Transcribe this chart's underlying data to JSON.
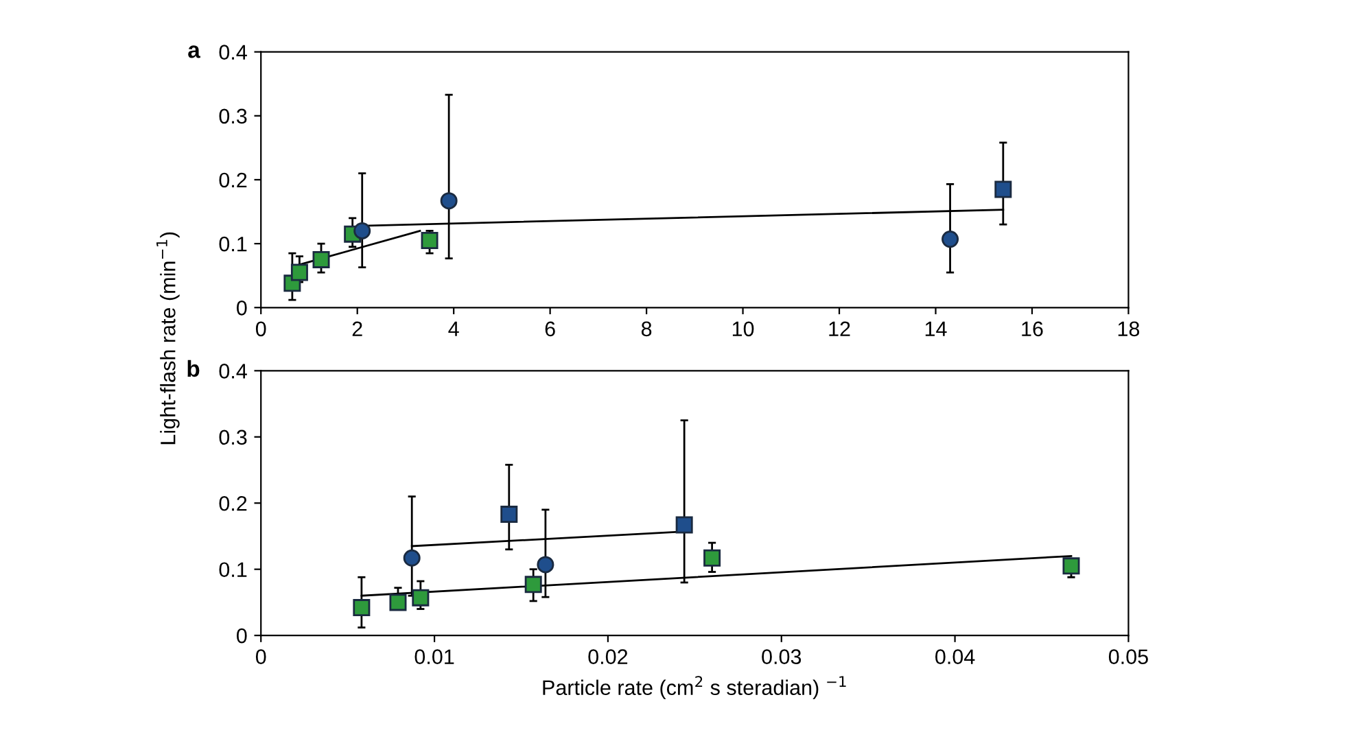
{
  "chart_data": [
    {
      "type": "scatter",
      "ylabel": "Light-flash rate (min$^{−1}$)",
      "annotations": [
        "a"
      ],
      "xlim": [
        0,
        18
      ],
      "xticks": [
        0,
        2,
        4,
        6,
        8,
        10,
        12,
        14,
        16,
        18
      ],
      "ylim": [
        0,
        0.4
      ],
      "yticks": [
        0,
        0.1,
        0.2,
        0.3,
        0.4
      ],
      "grid": false,
      "legend": false,
      "series": [
        {
          "marker": "square",
          "color": "#2e9a3c",
          "x": [
            0.65,
            0.8,
            1.25,
            1.9,
            3.5
          ],
          "values": [
            0.038,
            0.055,
            0.075,
            0.115,
            0.105
          ],
          "errors": [
            [
              0.012,
              0.085
            ],
            [
              0.04,
              0.08
            ],
            [
              0.055,
              0.1
            ],
            [
              0.095,
              0.14
            ],
            [
              0.085,
              0.12
            ]
          ]
        },
        {
          "marker": "circle",
          "color": "#1f4e8c",
          "x": [
            2.1,
            3.9,
            14.3
          ],
          "values": [
            0.12,
            0.167,
            0.107
          ],
          "errors": [
            [
              0.063,
              0.21
            ],
            [
              0.077,
              0.333
            ],
            [
              0.055,
              0.193
            ]
          ]
        },
        {
          "marker": "square",
          "color": "#1f4e8c",
          "x": [
            15.4
          ],
          "values": [
            0.185
          ],
          "errors": [
            [
              0.13,
              0.258
            ]
          ]
        },
        {
          "type": "line",
          "marker": "none",
          "color": "#000000",
          "x": [
            2.1,
            15.4
          ],
          "values": [
            0.128,
            0.153
          ]
        },
        {
          "type": "line",
          "marker": "none",
          "color": "#000000",
          "x": [
            0.7,
            3.3
          ],
          "values": [
            0.065,
            0.12
          ]
        }
      ]
    },
    {
      "type": "scatter",
      "xlabel": "Particle rate (cm$^{2}$ s steradian) $^{−1}$",
      "annotations": [
        "b"
      ],
      "xlim": [
        0,
        0.05
      ],
      "xticks": [
        0,
        0.01,
        0.02,
        0.03,
        0.04,
        0.05
      ],
      "ylim": [
        0,
        0.4
      ],
      "yticks": [
        0,
        0.1,
        0.2,
        0.3,
        0.4
      ],
      "grid": false,
      "legend": false,
      "series": [
        {
          "marker": "square",
          "color": "#2e9a3c",
          "x": [
            0.0058,
            0.0079,
            0.0092,
            0.0157,
            0.026,
            0.0467
          ],
          "values": [
            0.042,
            0.05,
            0.057,
            0.077,
            0.117,
            0.105
          ],
          "errors": [
            [
              0.012,
              0.088
            ],
            [
              0.04,
              0.072
            ],
            [
              0.04,
              0.082
            ],
            [
              0.052,
              0.1
            ],
            [
              0.096,
              0.14
            ],
            [
              0.088,
              0.115
            ]
          ]
        },
        {
          "marker": "circle",
          "color": "#1f4e8c",
          "x": [
            0.0087,
            0.0164
          ],
          "values": [
            0.117,
            0.107
          ],
          "errors": [
            [
              0.06,
              0.21
            ],
            [
              0.058,
              0.19
            ]
          ]
        },
        {
          "marker": "square",
          "color": "#1f4e8c",
          "x": [
            0.0143,
            0.0244
          ],
          "values": [
            0.183,
            0.167
          ],
          "errors": [
            [
              0.13,
              0.258
            ],
            [
              0.08,
              0.325
            ]
          ]
        },
        {
          "type": "line",
          "marker": "none",
          "color": "#000000",
          "x": [
            0.0087,
            0.0244
          ],
          "values": [
            0.135,
            0.157
          ]
        },
        {
          "type": "line",
          "marker": "none",
          "color": "#000000",
          "x": [
            0.0058,
            0.0467
          ],
          "values": [
            0.06,
            0.12
          ]
        }
      ]
    }
  ]
}
